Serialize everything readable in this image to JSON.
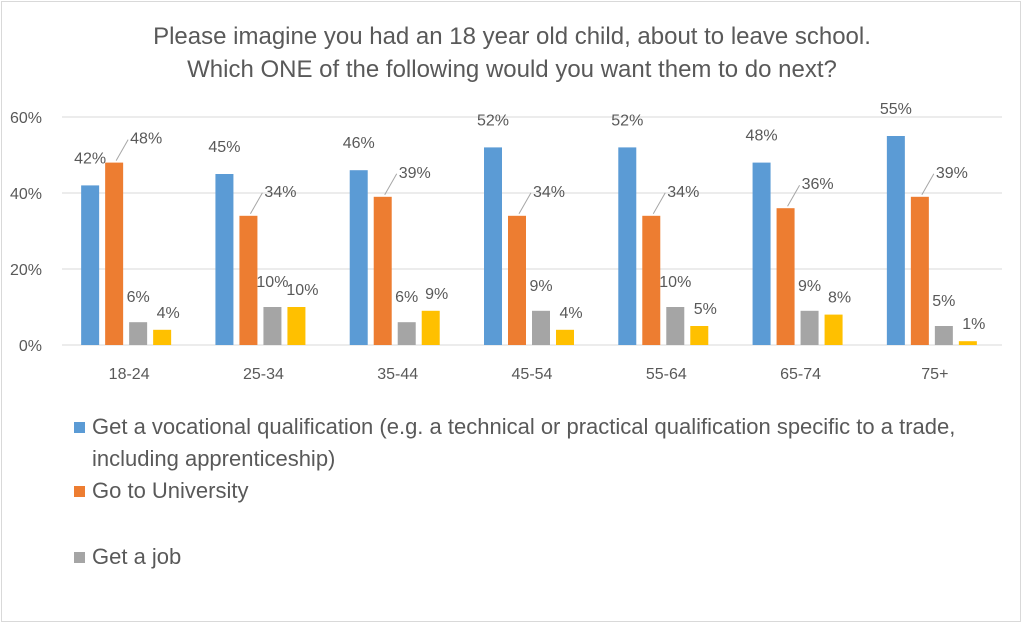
{
  "chart_data": {
    "type": "bar",
    "title": [
      "Please imagine you had an 18 year old child, about to leave school.",
      "Which ONE of the following would you want them to do next?"
    ],
    "categories": [
      "18-24",
      "25-34",
      "35-44",
      "45-54",
      "55-64",
      "65-74",
      "75+"
    ],
    "series": [
      {
        "name": "Get a vocational qualification (e.g. a technical or practical qualification specific to a trade, including apprenticeship)",
        "color": "#5b9bd5",
        "values": [
          42,
          45,
          46,
          52,
          52,
          48,
          55
        ]
      },
      {
        "name": "Go to University",
        "color": "#ed7d31",
        "values": [
          48,
          34,
          39,
          34,
          34,
          36,
          39
        ]
      },
      {
        "name": "Get a job",
        "color": "#a5a5a5",
        "values": [
          6,
          10,
          6,
          9,
          10,
          9,
          5
        ]
      },
      {
        "name": "",
        "color": "#ffc000",
        "values": [
          4,
          10,
          9,
          4,
          5,
          8,
          1
        ]
      }
    ],
    "data_labels": [
      [
        "42%",
        "48%",
        "6%",
        "4%"
      ],
      [
        "45%",
        "34%",
        "10%",
        "10%"
      ],
      [
        "46%",
        "39%",
        "6%",
        "9%"
      ],
      [
        "52%",
        "34%",
        "9%",
        "4%"
      ],
      [
        "52%",
        "34%",
        "10%",
        "5%"
      ],
      [
        "48%",
        "36%",
        "9%",
        "8%"
      ],
      [
        "55%",
        "39%",
        "5%",
        "1%"
      ]
    ],
    "y_ticks": [
      "0%",
      "20%",
      "40%",
      "60%"
    ],
    "ylim": [
      0,
      60
    ],
    "grid": true,
    "legend_position": "bottom"
  }
}
